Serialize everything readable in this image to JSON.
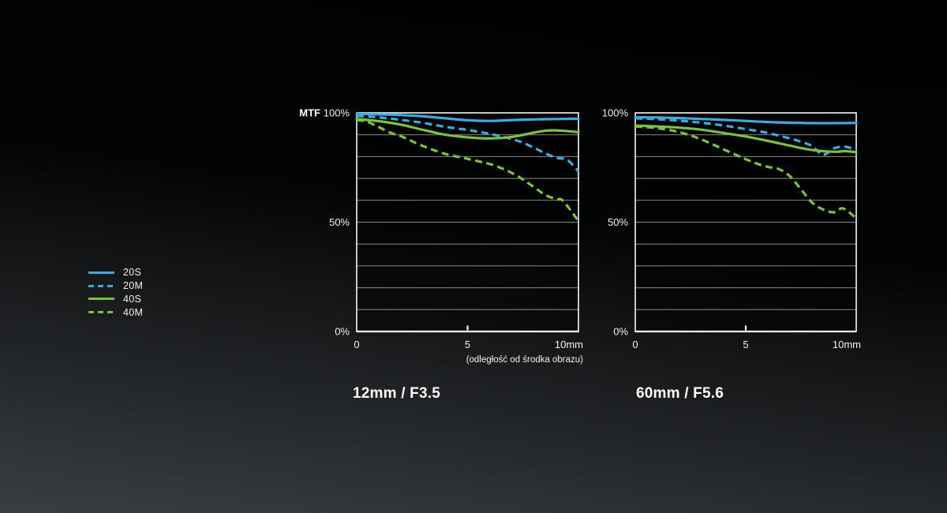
{
  "page": {
    "background_top": "#000000",
    "background_bottom": "#3a3e43",
    "text_color": "#f2f2f2",
    "accent_blue": "#3fa9df",
    "accent_green": "#7cc13d"
  },
  "legend": {
    "items": [
      {
        "label": "20S",
        "color": "#3fa9df",
        "dashed": false
      },
      {
        "label": "20M",
        "color": "#3fa9df",
        "dashed": true
      },
      {
        "label": "40S",
        "color": "#7cc13d",
        "dashed": false
      },
      {
        "label": "40M",
        "color": "#7cc13d",
        "dashed": true
      }
    ]
  },
  "chart_data": [
    {
      "type": "line",
      "title": "12mm / F3.5",
      "ylabel": "MTF",
      "xlabel": "(odległość od środka obrazu)",
      "xlim": [
        0,
        10
      ],
      "ylim": [
        0,
        100
      ],
      "grid_step": 10,
      "grid": true,
      "x_ticks": [
        {
          "label": "0",
          "value": 0
        },
        {
          "label": "5",
          "value": 5
        },
        {
          "label": "10mm",
          "value": 10
        }
      ],
      "y_ticks": [
        {
          "label": "0%",
          "value": 0
        },
        {
          "label": "50%",
          "value": 50
        },
        {
          "label": "100%",
          "value": 100
        }
      ],
      "series": [
        {
          "name": "20S",
          "color": "#3fa9df",
          "dashed": false,
          "x": [
            0,
            1,
            2,
            3,
            4,
            5,
            6,
            7,
            8,
            9,
            10
          ],
          "values": [
            99.5,
            99.3,
            99.0,
            98.4,
            97.5,
            96.6,
            96.3,
            96.7,
            97.0,
            97.2,
            97.3
          ]
        },
        {
          "name": "20M",
          "color": "#3fa9df",
          "dashed": true,
          "x": [
            0,
            0.5,
            1,
            2,
            3,
            4,
            5,
            6,
            7,
            7.5,
            8,
            8.5,
            9,
            9.5,
            10
          ],
          "values": [
            98.6,
            98.3,
            97.9,
            96.8,
            95.4,
            93.6,
            92.2,
            90.4,
            88.0,
            86.3,
            84.0,
            81.5,
            79.5,
            78.4,
            73.2
          ]
        },
        {
          "name": "40S",
          "color": "#7cc13d",
          "dashed": false,
          "x": [
            0,
            1,
            2,
            3,
            4,
            5,
            6,
            7,
            8,
            8.5,
            9,
            10
          ],
          "values": [
            97.2,
            96.2,
            94.6,
            92.2,
            90.0,
            88.8,
            88.3,
            89.0,
            91.0,
            91.8,
            92.0,
            91.2
          ]
        },
        {
          "name": "40M",
          "color": "#7cc13d",
          "dashed": true,
          "x": [
            0,
            0.5,
            1,
            1.5,
            2,
            2.5,
            3,
            4,
            5,
            6,
            6.5,
            7,
            7.5,
            8,
            8.5,
            9,
            9.3,
            10
          ],
          "values": [
            96.8,
            95.8,
            93.5,
            91.0,
            89.3,
            87.0,
            84.8,
            81.2,
            79.0,
            76.6,
            74.8,
            72.5,
            69.5,
            66.0,
            62.5,
            60.5,
            59.8,
            50.5
          ]
        }
      ]
    },
    {
      "type": "line",
      "title": "60mm / F5.6",
      "ylabel": "",
      "xlabel": "",
      "xlim": [
        0,
        10
      ],
      "ylim": [
        0,
        100
      ],
      "grid_step": 10,
      "grid": true,
      "x_ticks": [
        {
          "label": "0",
          "value": 0
        },
        {
          "label": "5",
          "value": 5
        },
        {
          "label": "10mm",
          "value": 10
        }
      ],
      "y_ticks": [
        {
          "label": "0%",
          "value": 0
        },
        {
          "label": "50%",
          "value": 50
        },
        {
          "label": "100%",
          "value": 100
        }
      ],
      "series": [
        {
          "name": "20S",
          "color": "#3fa9df",
          "dashed": false,
          "x": [
            0,
            1,
            2,
            3,
            4,
            5,
            6,
            7,
            8,
            9,
            10
          ],
          "values": [
            98.0,
            97.9,
            97.6,
            97.2,
            96.8,
            96.3,
            95.8,
            95.5,
            95.3,
            95.3,
            95.4
          ]
        },
        {
          "name": "20M",
          "color": "#3fa9df",
          "dashed": true,
          "x": [
            0,
            1,
            2,
            3,
            4,
            5,
            6,
            7,
            7.5,
            8,
            8.5,
            9,
            9.5,
            10
          ],
          "values": [
            97.5,
            97.1,
            96.4,
            95.5,
            94.2,
            92.6,
            90.8,
            88.3,
            86.8,
            84.8,
            80.8,
            83.8,
            84.5,
            83.0
          ]
        },
        {
          "name": "40S",
          "color": "#7cc13d",
          "dashed": false,
          "x": [
            0,
            1,
            2,
            3,
            4,
            5,
            6,
            7,
            8,
            9,
            9.5,
            10
          ],
          "values": [
            94.2,
            93.8,
            93.2,
            92.3,
            90.8,
            89.2,
            87.2,
            85.0,
            83.0,
            82.2,
            82.5,
            82.0
          ]
        },
        {
          "name": "40M",
          "color": "#7cc13d",
          "dashed": true,
          "x": [
            0,
            1,
            2,
            3,
            4,
            5,
            5.5,
            6,
            6.5,
            7,
            7.5,
            8,
            8.5,
            9,
            9.4,
            10
          ],
          "values": [
            93.8,
            93.0,
            91.2,
            87.8,
            83.3,
            78.8,
            76.8,
            75.3,
            74.3,
            71.0,
            65.0,
            59.0,
            55.8,
            54.5,
            56.3,
            51.8
          ]
        }
      ]
    }
  ]
}
